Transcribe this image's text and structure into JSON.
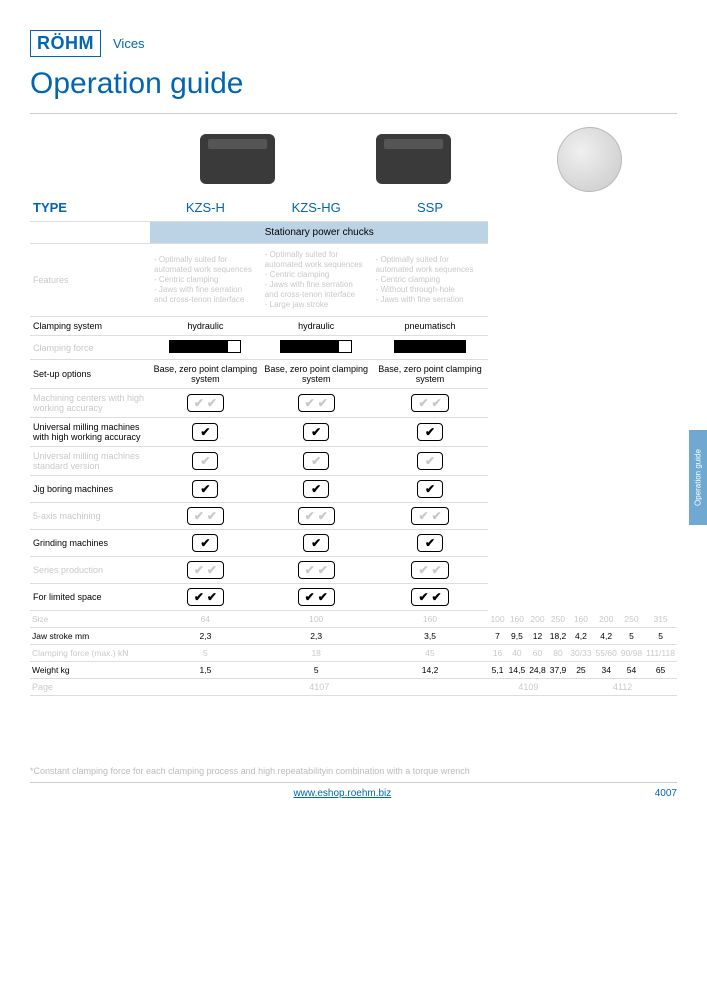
{
  "header": {
    "logo": "RÖHM",
    "category": "Vices"
  },
  "title": "Operation guide",
  "sidetab": "Operation guide",
  "typeLabel": "TYPE",
  "products": [
    "KZS-H",
    "KZS-HG",
    "SSP"
  ],
  "bandLabel": "Stationary power chucks",
  "features": {
    "label": "Features",
    "col1": "- Optimally suited for automated work sequences\n- Centric clamping\n- Jaws with fine serration and cross-tenon interface",
    "col2": "- Optimally suited for automated work sequences\n- Centric clamping\n- Jaws with fine serration and cross-tenon interface\n- Large jaw stroke",
    "col3": "- Optimally suited for automated work sequences\n- Centric clamping\n- Without through-hole\n- Jaws with fine serration"
  },
  "rows": [
    {
      "label": "Clamping system",
      "style": "plain",
      "vals": [
        "hydraulic",
        "hydraulic",
        "pneumatisch"
      ]
    },
    {
      "label": "Clamping force",
      "style": "striped",
      "type": "bar",
      "vals": [
        [
          58,
          14
        ],
        [
          58,
          14
        ],
        [
          72,
          0
        ]
      ]
    },
    {
      "label": "Set-up options",
      "style": "plain",
      "vals": [
        "Base, zero point clamping system",
        "Base, zero point clamping system",
        "Base, zero point clamping system"
      ]
    },
    {
      "label": "Machining centers with high working accuracy",
      "style": "striped",
      "type": "check",
      "vals": [
        2,
        2,
        2
      ]
    },
    {
      "label": "Universal milling machines with high working accuracy",
      "style": "plain",
      "type": "check",
      "vals": [
        1,
        1,
        1
      ]
    },
    {
      "label": "Universal milling machines standard version",
      "style": "striped",
      "type": "check",
      "vals": [
        1,
        1,
        1
      ]
    },
    {
      "label": "Jig boring machines",
      "style": "plain",
      "type": "check",
      "vals": [
        1,
        1,
        1
      ]
    },
    {
      "label": "5-axis machining",
      "style": "striped",
      "type": "check",
      "vals": [
        2,
        2,
        2
      ]
    },
    {
      "label": "Grinding machines",
      "style": "plain",
      "type": "check",
      "vals": [
        1,
        1,
        1
      ]
    },
    {
      "label": "Series production",
      "style": "striped",
      "type": "check",
      "vals": [
        2,
        2,
        2
      ]
    },
    {
      "label": "For limited space",
      "style": "plain",
      "type": "check",
      "vals": [
        2,
        2,
        2
      ]
    }
  ],
  "specs": {
    "sizeLabel": "Size",
    "sizes": [
      "64",
      "100",
      "160",
      "100",
      "160",
      "200",
      "250",
      "160",
      "200",
      "250",
      "315"
    ],
    "rows": [
      {
        "label": "Jaw stroke mm",
        "style": "plain",
        "vals": [
          "2,3",
          "2,3",
          "3,5",
          "7",
          "9,5",
          "12",
          "18,2",
          "4,2",
          "4,2",
          "5",
          "5"
        ]
      },
      {
        "label": "Clamping force (max.) kN",
        "style": "striped",
        "vals": [
          "5",
          "18",
          "45",
          "16",
          "40",
          "60",
          "80",
          "30/33",
          "55/60",
          "90/98",
          "111/118"
        ]
      },
      {
        "label": "Weight kg",
        "style": "plain",
        "vals": [
          "1,5",
          "5",
          "14,2",
          "5,1",
          "14,5",
          "24,8",
          "37,9",
          "25",
          "34",
          "54",
          "65"
        ]
      }
    ],
    "pageLabel": "Page",
    "pages": [
      "4107",
      "4109",
      "4112"
    ]
  },
  "footnote": "*Constant clamping force for each clamping process and high repeatabilityin combination with a torque wrench",
  "footer": {
    "url": "www.eshop.roehm.biz",
    "page": "4007"
  },
  "colors": {
    "brand": "#0066b3",
    "band": "#bcd3e5",
    "muted": "#c9c9c9"
  }
}
